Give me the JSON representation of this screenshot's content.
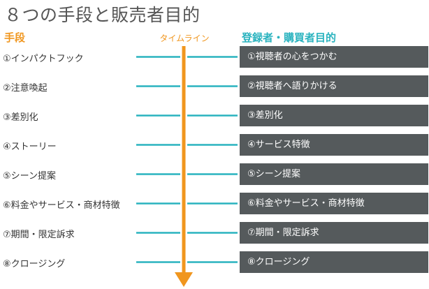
{
  "title": "８つの手段と販売者目的",
  "headers": {
    "methods": "手段",
    "timeline": "タイムライン",
    "purposes": "登録者・購買者目的"
  },
  "rows": [
    {
      "method": "①インパクトフック",
      "purpose": "①視聴者の心をつかむ"
    },
    {
      "method": "②注意喚起",
      "purpose": "②視聴者へ語りかける"
    },
    {
      "method": "③差別化",
      "purpose": "③差別化"
    },
    {
      "method": "④ストーリー",
      "purpose": "④サービス特徴"
    },
    {
      "method": "⑤シーン提案",
      "purpose": "⑤シーン提案"
    },
    {
      "method": "⑥料金やサービス・商材特徴",
      "purpose": "⑥料金やサービス・商材特徴"
    },
    {
      "method": "⑦期間・限定訴求",
      "purpose": "⑦期間・限定訴求"
    },
    {
      "method": "⑧クロージング",
      "purpose": "⑧クロージング"
    }
  ],
  "colors": {
    "methods_header": "#f0961e",
    "purposes_header": "#2ab3bf",
    "timeline_header": "#f0961e",
    "arrow": "#f0961e",
    "connector": "#2ab3bf",
    "box_fill": "#555a5c",
    "title_text": "#555555",
    "body_text": "#333333"
  }
}
